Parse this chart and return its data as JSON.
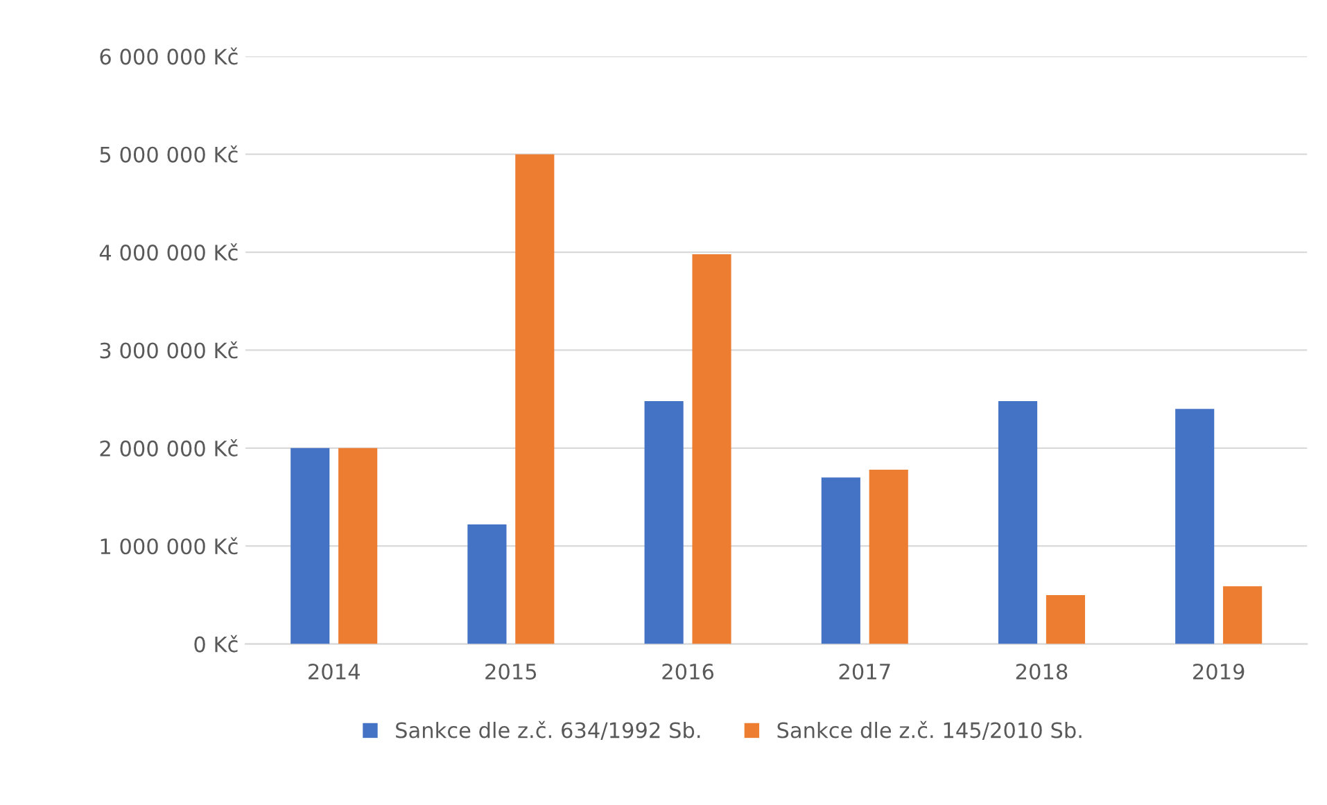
{
  "chart_data": {
    "type": "bar",
    "categories": [
      "2014",
      "2015",
      "2016",
      "2017",
      "2018",
      "2019"
    ],
    "series": [
      {
        "name": "Sankce dle z.č. 634/1992 Sb.",
        "color": "#4472c4",
        "values": [
          2000000,
          1220000,
          2480000,
          1700000,
          2480000,
          2400000
        ]
      },
      {
        "name": "Sankce dle z.č. 145/2010 Sb.",
        "color": "#ed7d31",
        "values": [
          2000000,
          5000000,
          3980000,
          1780000,
          500000,
          590000
        ]
      }
    ],
    "ylim": [
      0,
      6000000
    ],
    "yticks": [
      {
        "value": 0,
        "label": "0 Kč"
      },
      {
        "value": 1000000,
        "label": "1 000 000 Kč"
      },
      {
        "value": 2000000,
        "label": "2 000 000 Kč"
      },
      {
        "value": 3000000,
        "label": "3 000 000 Kč"
      },
      {
        "value": 4000000,
        "label": "4 000 000 Kč"
      },
      {
        "value": 5000000,
        "label": "5 000 000 Kč"
      },
      {
        "value": 6000000,
        "label": "6 000 000 Kč"
      }
    ],
    "grid": "y",
    "legend": "bottom"
  }
}
